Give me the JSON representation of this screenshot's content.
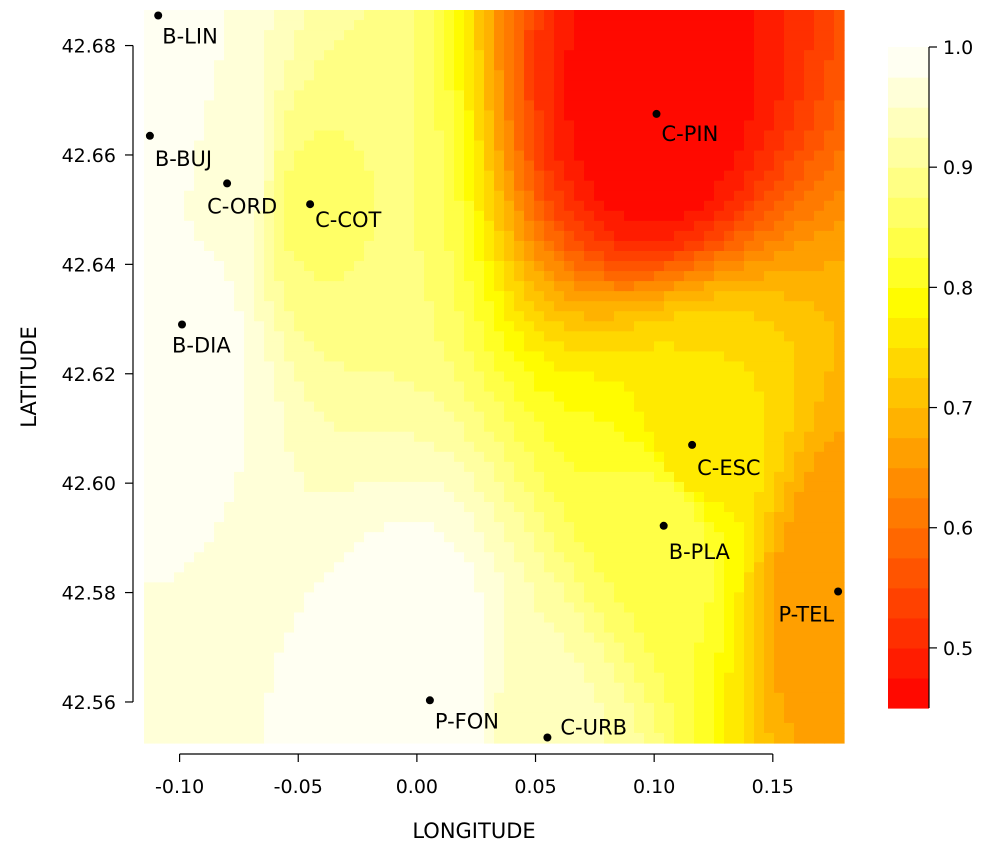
{
  "chart_data": {
    "type": "heatmap",
    "title": "",
    "xlabel": "LONGITUDE",
    "ylabel": "LATITUDE",
    "xlim": [
      -0.115,
      0.18
    ],
    "ylim": [
      42.5525,
      42.6865
    ],
    "x_ticks": [
      "-0.10",
      "-0.05",
      "0.00",
      "0.05",
      "0.10",
      "0.15"
    ],
    "y_ticks": [
      "42.56",
      "42.58",
      "42.60",
      "42.62",
      "42.64",
      "42.66",
      "42.68"
    ],
    "colorbar": {
      "min": 0.45,
      "max": 1.0,
      "ticks": [
        "0.5",
        "0.6",
        "0.7",
        "0.8",
        "0.9",
        "1.0"
      ],
      "levels": 22,
      "colors": [
        "#ff0000",
        "#ffff00",
        "#ffffff"
      ]
    },
    "stations": [
      {
        "name": "B-LIN",
        "lon": -0.109,
        "lat": 42.6855,
        "value": 0.98
      },
      {
        "name": "B-BUJ",
        "lon": -0.1125,
        "lat": 42.6635,
        "value": 0.99
      },
      {
        "name": "C-ORD",
        "lon": -0.08,
        "lat": 42.6548,
        "value": 0.97
      },
      {
        "name": "C-COT",
        "lon": -0.045,
        "lat": 42.651,
        "value": 0.87
      },
      {
        "name": "B-DIA",
        "lon": -0.099,
        "lat": 42.629,
        "value": 0.99
      },
      {
        "name": "C-PIN",
        "lon": 0.101,
        "lat": 42.6675,
        "value": 0.45
      },
      {
        "name": "C-ESC",
        "lon": 0.116,
        "lat": 42.607,
        "value": 0.75
      },
      {
        "name": "B-PLA",
        "lon": 0.104,
        "lat": 42.5922,
        "value": 0.85
      },
      {
        "name": "P-TEL",
        "lon": 0.1775,
        "lat": 42.5802,
        "value": 0.65
      },
      {
        "name": "P-FON",
        "lon": 0.0055,
        "lat": 42.5603,
        "value": 1.0
      },
      {
        "name": "C-URB",
        "lon": 0.055,
        "lat": 42.5535,
        "value": 0.93
      }
    ]
  }
}
